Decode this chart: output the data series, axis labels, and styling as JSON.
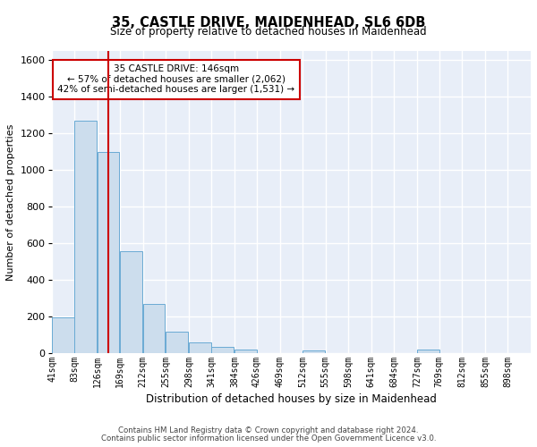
{
  "title": "35, CASTLE DRIVE, MAIDENHEAD, SL6 6DB",
  "subtitle": "Size of property relative to detached houses in Maidenhead",
  "xlabel": "Distribution of detached houses by size in Maidenhead",
  "ylabel": "Number of detached properties",
  "footer_line1": "Contains HM Land Registry data © Crown copyright and database right 2024.",
  "footer_line2": "Contains public sector information licensed under the Open Government Licence v3.0.",
  "annotation_line1": "35 CASTLE DRIVE: 146sqm",
  "annotation_line2": "← 57% of detached houses are smaller (2,062)",
  "annotation_line3": "42% of semi-detached houses are larger (1,531) →",
  "property_size": 146,
  "bar_color": "#ccdded",
  "bar_edge_color": "#6aaad4",
  "redline_color": "#cc0000",
  "background_color": "#e8eef8",
  "grid_color": "#ffffff",
  "fig_background": "#ffffff",
  "categories": [
    "41sqm",
    "83sqm",
    "126sqm",
    "169sqm",
    "212sqm",
    "255sqm",
    "298sqm",
    "341sqm",
    "384sqm",
    "426sqm",
    "469sqm",
    "512sqm",
    "555sqm",
    "598sqm",
    "641sqm",
    "684sqm",
    "727sqm",
    "769sqm",
    "812sqm",
    "855sqm",
    "898sqm"
  ],
  "bin_edges": [
    41,
    83,
    126,
    169,
    212,
    255,
    298,
    341,
    384,
    426,
    469,
    512,
    555,
    598,
    641,
    684,
    727,
    769,
    812,
    855,
    898
  ],
  "values": [
    197,
    1270,
    1100,
    557,
    267,
    119,
    57,
    33,
    22,
    0,
    0,
    15,
    0,
    0,
    0,
    0,
    18,
    0,
    0,
    0,
    0
  ],
  "ylim": [
    0,
    1650
  ],
  "yticks": [
    0,
    200,
    400,
    600,
    800,
    1000,
    1200,
    1400,
    1600
  ]
}
